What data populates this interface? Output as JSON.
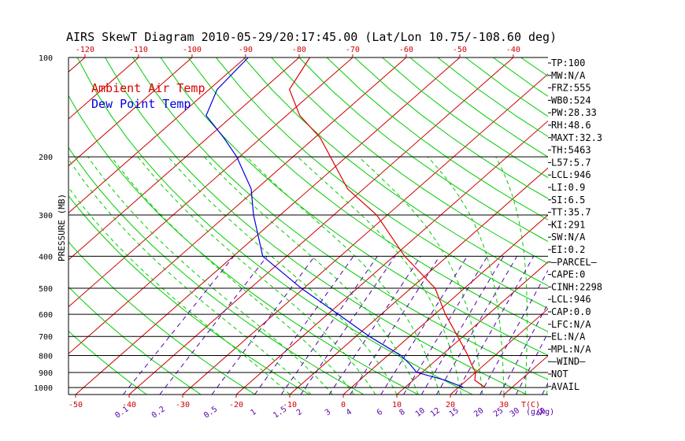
{
  "title": "AIRS SkewT Diagram 2010-05-29/20:17:45.00 (Lat/Lon 10.75/-108.60 deg)",
  "legend": [
    {
      "label": "Ambient Air Temp",
      "color": "#dd0000"
    },
    {
      "label": "Dew Point Temp",
      "color": "#0000dd"
    }
  ],
  "colors": {
    "isotherm": "#cc0000",
    "dry_adiabat": "#00cc00",
    "moist_adiabat": "#00cc00",
    "mixing_ratio": "#5500aa",
    "bottom_ticks": "#cc0000",
    "mixing_labels": "#5500aa"
  },
  "chart_data": {
    "type": "line",
    "title": "AIRS SkewT Diagram 2010-05-29/20:17:45.00 (Lat/Lon 10.75/-108.60 deg)",
    "xlabel": "T(C)",
    "ylabel": "PRESSURE (MB)",
    "y_scale": "log",
    "ylim": [
      1050,
      100
    ],
    "pressure_ticks": [
      100,
      200,
      300,
      400,
      500,
      600,
      700,
      800,
      900,
      1000
    ],
    "top_temp_ticks": [
      -120,
      -110,
      -100,
      -90,
      -80,
      -70,
      -60,
      -50,
      -40
    ],
    "bottom_temp_ticks": [
      -50,
      -40,
      -30,
      -20,
      -10,
      0,
      10,
      20,
      30
    ],
    "mixing_ratio_labels": [
      "0.1",
      "0.2",
      "0.5",
      "1",
      "1.5",
      "2",
      "3",
      "4",
      "6",
      "8",
      "10",
      "12",
      "15",
      "20",
      "25",
      "30",
      "40"
    ],
    "mixing_unit_label": "(g/kg)",
    "series": [
      {
        "name": "Ambient Air Temp",
        "pressure": [
          1000,
          950,
          900,
          850,
          800,
          700,
          600,
          500,
          400,
          300,
          250,
          200,
          175,
          150,
          125,
          100
        ],
        "values": [
          25.0,
          21.5,
          20.0,
          17.5,
          15.0,
          9.0,
          2.0,
          -5.5,
          -18.0,
          -32.0,
          -43.0,
          -53.0,
          -59.0,
          -67.5,
          -75.0,
          -78.0
        ]
      },
      {
        "name": "Dew Point Temp",
        "pressure": [
          1000,
          950,
          900,
          850,
          800,
          700,
          600,
          500,
          400,
          300,
          250,
          200,
          175,
          150,
          125,
          100
        ],
        "values": [
          21.0,
          16.0,
          9.0,
          6.0,
          2.5,
          -7.5,
          -18.0,
          -30.5,
          -44.5,
          -55.0,
          -61.0,
          -70.5,
          -77.0,
          -85.0,
          -88.5,
          -89.5
        ]
      }
    ]
  },
  "stats": [
    "TP:100",
    "MW:N/A",
    "FRZ:555",
    "WB0:524",
    "PW:28.33",
    "RH:48.6",
    "MAXT:32.3",
    "TH:5463",
    "L57:5.7",
    "LCL:946",
    "LI:0.9",
    "SI:6.5",
    "TT:35.7",
    "KI:291",
    "SW:N/A",
    "EI:0.2",
    "—PARCEL—",
    "CAPE:0",
    "CINH:2298",
    "LCL:946",
    "CAP:0.0",
    "LFC:N/A",
    "EL:N/A",
    "MPL:N/A",
    "—WIND—",
    "NOT",
    "AVAIL"
  ]
}
